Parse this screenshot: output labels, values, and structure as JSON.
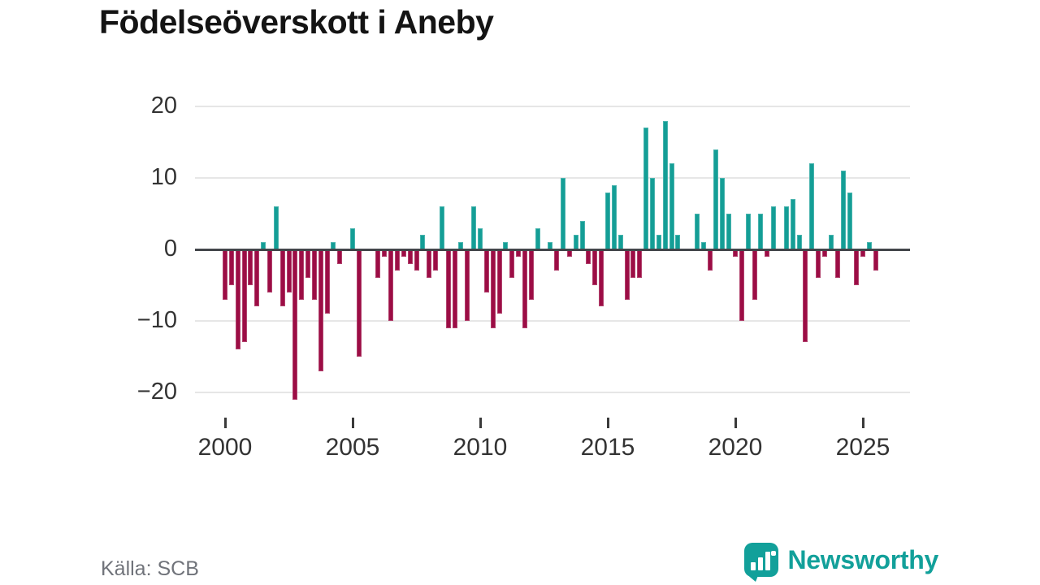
{
  "title": "Födelseöverskott i Aneby",
  "source": "Källa: SCB",
  "branding": {
    "name": "Newsworthy",
    "icon": "newsworthy-bar-chart-bubble-icon",
    "color": "#12a09a"
  },
  "chart_data": {
    "type": "bar",
    "title": "Födelseöverskott i Aneby",
    "frequency": "quarterly",
    "start_period": "2000Q1",
    "end_period": "2025Q3",
    "xlabel": "",
    "ylabel": "",
    "ylim": [
      -22,
      20
    ],
    "grid": true,
    "legend": false,
    "y_ticks": [
      20,
      10,
      0,
      -10,
      -20
    ],
    "y_tick_labels": [
      "20",
      "10",
      "0",
      "−10",
      "−20"
    ],
    "x_tick_years": [
      2000,
      2005,
      2010,
      2015,
      2020,
      2025
    ],
    "x_tick_labels": [
      "2000",
      "2005",
      "2010",
      "2015",
      "2020",
      "2025"
    ],
    "colors": {
      "positive": "#149e96",
      "negative": "#9c0d45",
      "zero_axis": "#43464a",
      "gridline": "#e6e6e6",
      "tick_text": "#333333"
    },
    "series": [
      {
        "name": "Födelseöverskott",
        "values": [
          -7,
          -5,
          -14,
          -13,
          -5,
          -8,
          1,
          -6,
          6,
          -8,
          -6,
          -21,
          -7,
          -4,
          -7,
          -17,
          -9,
          1,
          -2,
          0,
          3,
          -15,
          0,
          0,
          -4,
          -1,
          -10,
          -3,
          -1,
          -2,
          -3,
          2,
          -4,
          -3,
          6,
          -11,
          -11,
          1,
          -10,
          6,
          3,
          -6,
          -11,
          -9,
          1,
          -4,
          -1,
          -11,
          -7,
          3,
          0,
          1,
          -3,
          10,
          -1,
          2,
          4,
          -2,
          -5,
          -8,
          8,
          9,
          2,
          -7,
          -4,
          -4,
          17,
          10,
          2,
          18,
          12,
          2,
          0,
          0,
          5,
          1,
          -3,
          14,
          10,
          5,
          -1,
          -10,
          5,
          -7,
          5,
          -1,
          6,
          0,
          6,
          7,
          2,
          -13,
          12,
          -4,
          -1,
          2,
          -4,
          11,
          8,
          -5,
          -1,
          1,
          -3
        ]
      }
    ]
  }
}
